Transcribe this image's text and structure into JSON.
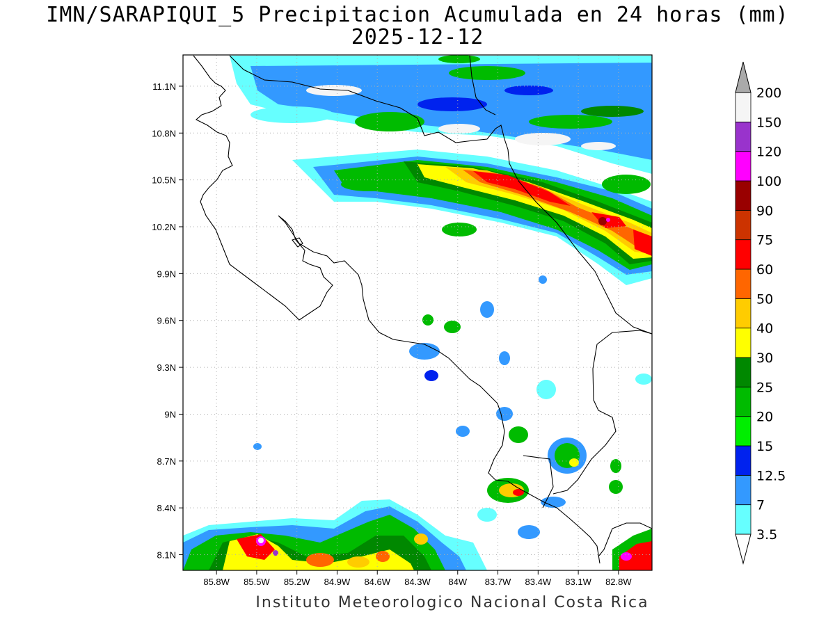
{
  "title_line1": "IMN/SARAPIQUI_5 Precipitacion Acumulada en 24 horas (mm)",
  "title_line2": "2025-12-12",
  "credit": "Instituto Meteorologico Nacional Costa Rica",
  "map": {
    "lon_range": [
      -86.05,
      -82.55
    ],
    "lat_range": [
      8.0,
      11.3
    ],
    "lon_ticks": [
      "85.8W",
      "85.5W",
      "85.2W",
      "84.9W",
      "84.6W",
      "84.3W",
      "84W",
      "83.7W",
      "83.4W",
      "83.1W",
      "82.8W"
    ],
    "lon_tick_values": [
      -85.8,
      -85.5,
      -85.2,
      -84.9,
      -84.6,
      -84.3,
      -84.0,
      -83.7,
      -83.4,
      -83.1,
      -82.8
    ],
    "lat_ticks": [
      "8.1N",
      "8.4N",
      "8.7N",
      "9N",
      "9.3N",
      "9.6N",
      "9.9N",
      "10.2N",
      "10.5N",
      "10.8N",
      "11.1N"
    ],
    "lat_tick_values": [
      8.1,
      8.4,
      8.7,
      9.0,
      9.3,
      9.6,
      9.9,
      10.2,
      10.5,
      10.8,
      11.1
    ],
    "grid": true
  },
  "colorbar": {
    "labels": [
      "3.5",
      "7",
      "12.5",
      "15",
      "20",
      "25",
      "30",
      "40",
      "50",
      "60",
      "75",
      "90",
      "100",
      "120",
      "150",
      "200"
    ],
    "colors": [
      "#66ffff",
      "#3399ff",
      "#0022ee",
      "#00ee00",
      "#00bb00",
      "#008800",
      "#ffff00",
      "#ffcc00",
      "#ff6600",
      "#ff0000",
      "#cc3300",
      "#990000",
      "#ff00ff",
      "#9933cc",
      "#f5f5f5",
      "#aaaaaa"
    ]
  }
}
